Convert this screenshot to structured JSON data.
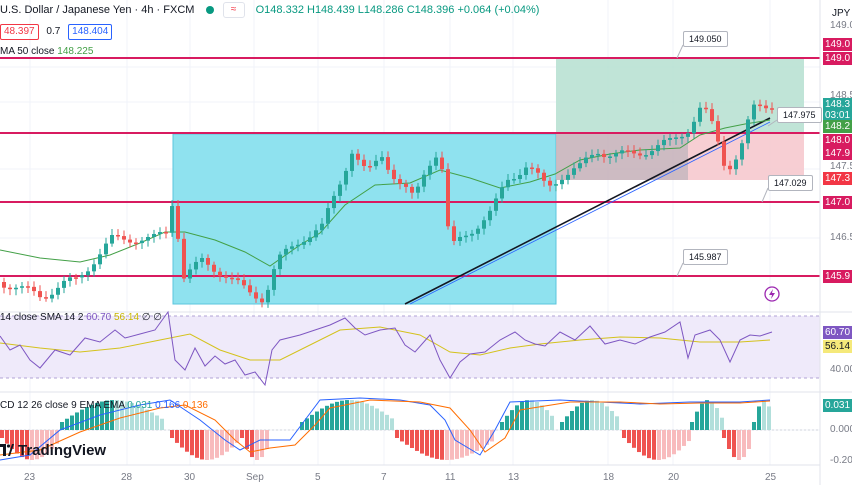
{
  "header": {
    "title": "U.S. Dollar / Japanese Yen · 4h · FXCM",
    "ohlc": "O148.332 H148.439 L148.286 C148.396 +0.064 (+0.04%)",
    "sell_price": "48.397",
    "spread": "0.7",
    "buy_price": "148.404",
    "ma_label": "MA 50 close",
    "ma_value": "148.225"
  },
  "currency": "JPY",
  "rsi": {
    "label": "14 close SMA 14 2",
    "value": "60.70",
    "ma": "56.14",
    "extra": "∅ ∅"
  },
  "macd": {
    "label": "CD 12 26 close 9 EMA EMA",
    "hist": "0.031",
    "macd": "0.166",
    "signal": "0.136"
  },
  "brand": "TradingView",
  "callouts": [
    "149.050",
    "147.975",
    "147.029",
    "145.987"
  ],
  "price_axis": [
    {
      "text": "149.0",
      "kind": "tick"
    },
    {
      "text": "149.0",
      "kind": "tag-pink"
    },
    {
      "text": "148.5",
      "kind": "tick"
    },
    {
      "text": "148.3",
      "kind": "tag-green"
    },
    {
      "text": "03:01",
      "kind": "tag-green"
    },
    {
      "text": "148.2",
      "kind": "tag-green"
    },
    {
      "text": "148.0",
      "kind": "tag-pink"
    },
    {
      "text": "147.9",
      "kind": "tag-pink"
    },
    {
      "text": "147.5",
      "kind": "tick"
    },
    {
      "text": "147.3",
      "kind": "tag-red"
    },
    {
      "text": "147.0",
      "kind": "tag-pink"
    },
    {
      "text": "146.5",
      "kind": "tick"
    },
    {
      "text": "145.9",
      "kind": "tag-pink"
    },
    {
      "text": "60.70",
      "kind": "tag-purple"
    },
    {
      "text": "56.14",
      "kind": "tag-yellow"
    },
    {
      "text": "40.00",
      "kind": "tick"
    },
    {
      "text": "0.031",
      "kind": "tag-teal"
    },
    {
      "text": "0.000",
      "kind": "tick"
    },
    {
      "text": "-0.20",
      "kind": "tick"
    }
  ],
  "dates": [
    "23",
    "28",
    "30",
    "Sep",
    "5",
    "7",
    "11",
    "13",
    "18",
    "20",
    "25"
  ],
  "colors": {
    "up": "#26a69a",
    "down": "#ef5350",
    "level": "#d81b60",
    "rect_cyan": "#8fe2ef",
    "rect_green": "#b5dfd0",
    "rect_red": "#f6c6cb",
    "ma": "#43a047",
    "rsi": "#7e57c2",
    "rsi_ma": "#d4c21c",
    "macd": "#2962ff",
    "signal": "#ff6d00"
  }
}
